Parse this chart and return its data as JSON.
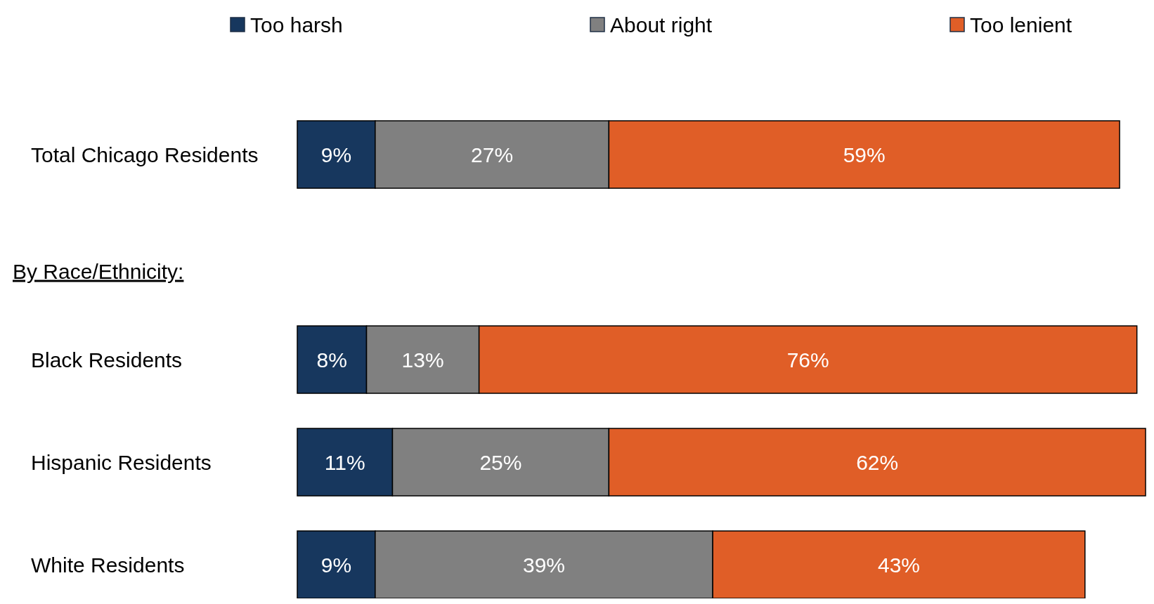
{
  "chart_data": {
    "type": "bar",
    "orientation": "horizontal",
    "stacked": true,
    "legend": "top",
    "categories": [
      "Total Chicago Residents",
      "Black Residents",
      "Hispanic Residents",
      "White Residents"
    ],
    "annotations": [
      "By Race/Ethnicity:"
    ],
    "series": [
      {
        "name": "Too harsh",
        "color": "#17375e",
        "values": [
          9,
          8,
          11,
          9
        ],
        "value_labels": [
          "9%",
          "8%",
          "11%",
          "9%"
        ]
      },
      {
        "name": "About right",
        "color": "#808080",
        "values": [
          27,
          13,
          25,
          39
        ],
        "value_labels": [
          "27%",
          "13%",
          "25%",
          "39%"
        ]
      },
      {
        "name": "Too lenient",
        "color": "#e05e27",
        "values": [
          59,
          76,
          62,
          43
        ],
        "value_labels": [
          "59%",
          "76%",
          "62%",
          "43%"
        ]
      }
    ]
  }
}
